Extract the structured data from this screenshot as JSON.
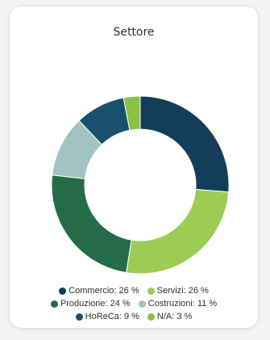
{
  "chart_data": {
    "type": "pie",
    "title": "Settore",
    "categories": [
      "Commercio",
      "Servizi",
      "Produzione",
      "Costruzioni",
      "HoReCa",
      "N/A"
    ],
    "values": [
      26,
      26,
      24,
      11,
      9,
      3
    ],
    "unit": "%",
    "colors": [
      "#143d59",
      "#9dcc55",
      "#256b47",
      "#a3c3c1",
      "#1b4f6e",
      "#8cc043"
    ],
    "donut": true,
    "legend_position": "bottom",
    "legend_labels": [
      "Commercio: 26 %",
      "Servizi: 26 %",
      "Produzione: 24 %",
      "Costruzioni: 11 %",
      "HoReCa: 9 %",
      "N/A: 3 %"
    ]
  }
}
